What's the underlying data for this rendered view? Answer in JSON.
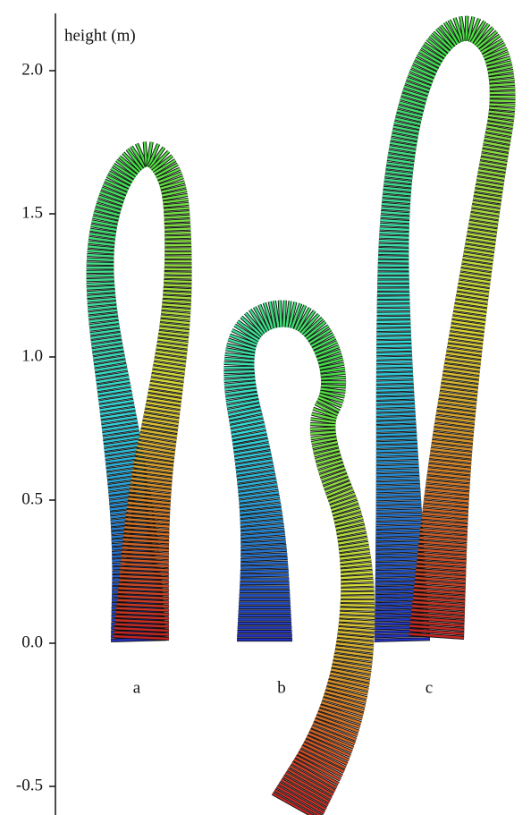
{
  "chart_data": {
    "type": "ribbon",
    "y_label": "height (m)",
    "categories": [
      "a",
      "b",
      "c"
    ],
    "ylim": [
      -0.6,
      2.2
    ],
    "yticks": [
      {
        "value": 2,
        "label": "2.0"
      },
      1.5,
      {
        "value": 1,
        "label": "1.0"
      },
      0.5,
      {
        "value": 0,
        "label": "0.0"
      },
      -0.5
    ]
  }
}
